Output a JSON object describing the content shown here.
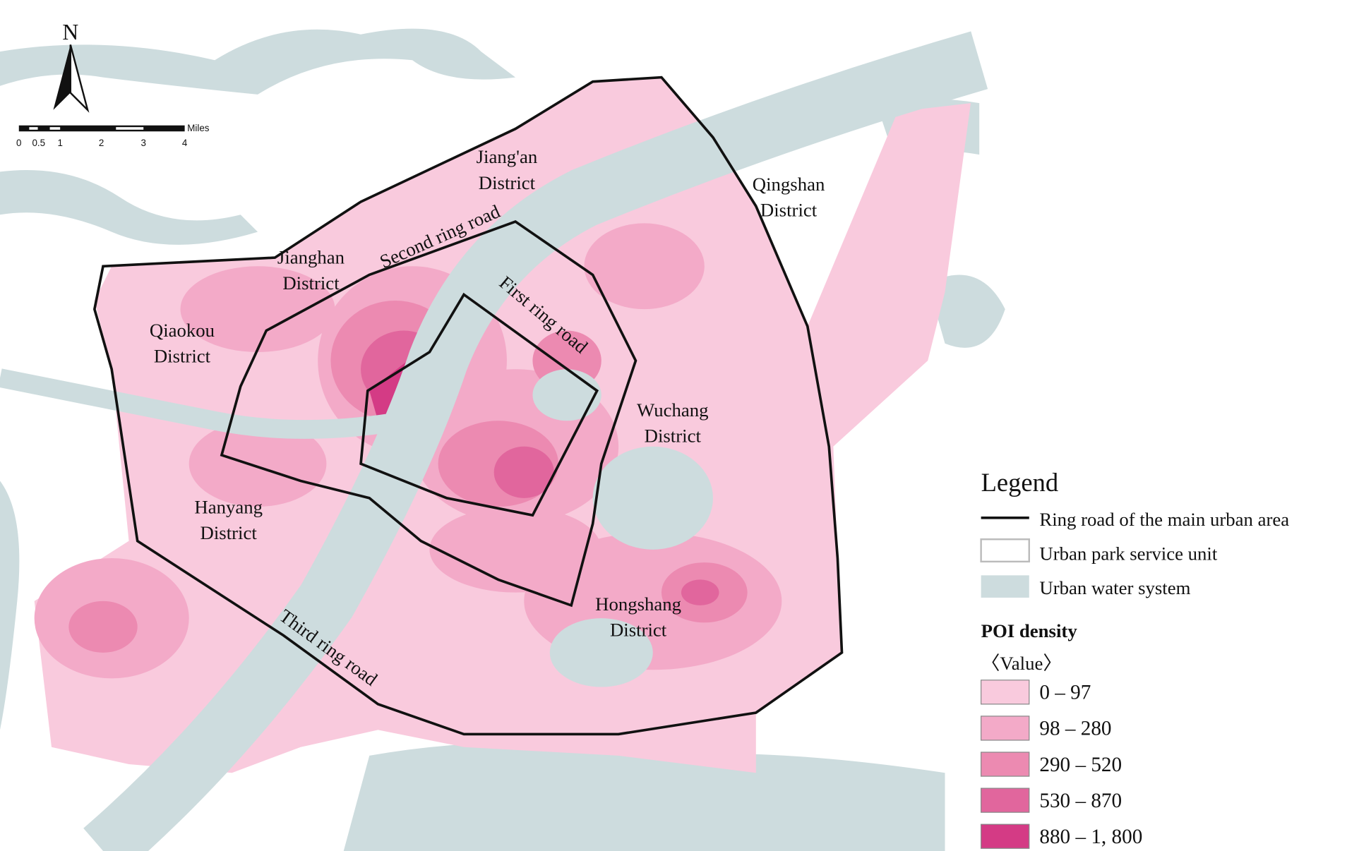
{
  "north_label": "N",
  "scale_bar": {
    "unit": "Miles",
    "ticks": [
      "0",
      "0.5",
      "1",
      "2",
      "3",
      "4"
    ]
  },
  "districts": [
    {
      "lines": [
        "Jiang'an",
        "District"
      ]
    },
    {
      "lines": [
        "Qingshan",
        "District"
      ]
    },
    {
      "lines": [
        "Jianghan",
        "District"
      ]
    },
    {
      "lines": [
        "Qiaokou",
        "District"
      ]
    },
    {
      "lines": [
        "Wuchang",
        "District"
      ]
    },
    {
      "lines": [
        "Hanyang",
        "District"
      ]
    },
    {
      "lines": [
        "Hongshang",
        "District"
      ]
    }
  ],
  "roads": [
    "Second ring road",
    "First ring road",
    "Third ring road"
  ],
  "legend": {
    "title": "Legend",
    "items": [
      "Ring road of the main urban area",
      "Urban park service unit",
      "Urban water system"
    ],
    "poi_title": "POI density",
    "value_label": "〈Value〉",
    "classes": [
      {
        "label": "0 – 97",
        "color": "#f9cadd"
      },
      {
        "label": "98 – 280",
        "color": "#f3aac8"
      },
      {
        "label": "290 – 520",
        "color": "#ec8ab1"
      },
      {
        "label": "530 – 870",
        "color": "#e1669d"
      },
      {
        "label": "880 – 1, 800",
        "color": "#d43b85"
      }
    ]
  }
}
